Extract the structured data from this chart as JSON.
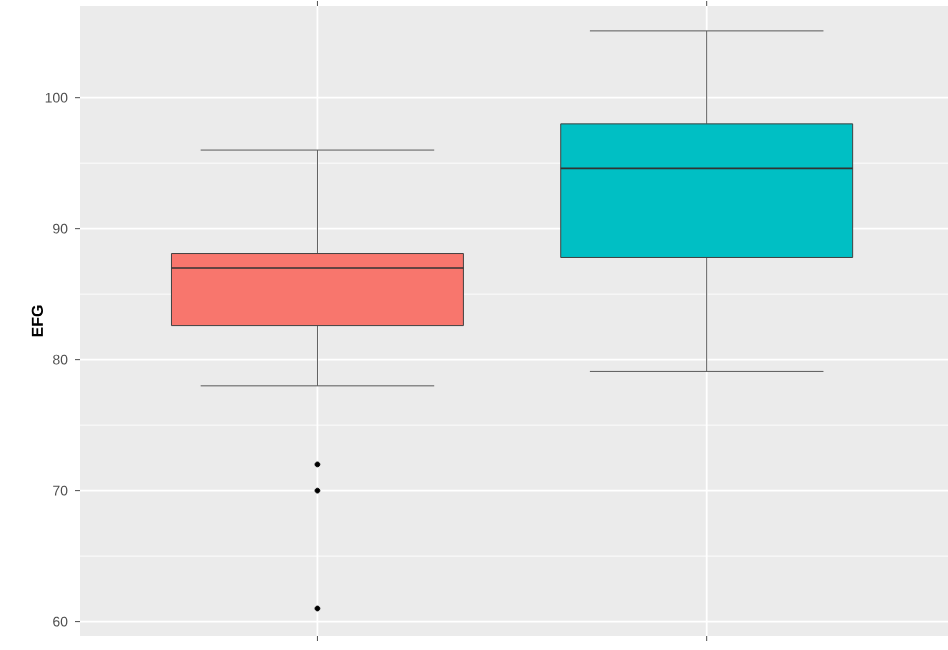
{
  "chart_data": {
    "type": "box",
    "ylabel": "EFG",
    "categories": [
      null,
      null
    ],
    "colors": [
      "#f8766d",
      "#00bfc4"
    ],
    "boxes": [
      {
        "low": 78,
        "q1": 82.6,
        "median": 87,
        "q3": 88.1,
        "high": 96,
        "outliers": [
          72,
          70,
          61
        ]
      },
      {
        "low": 79.1,
        "q1": 87.8,
        "median": 94.6,
        "q3": 98,
        "high": 105.1
      }
    ],
    "ylim": [
      58.9,
      107
    ],
    "yticks": [
      60,
      70,
      80,
      90,
      100
    ],
    "grid": true
  }
}
